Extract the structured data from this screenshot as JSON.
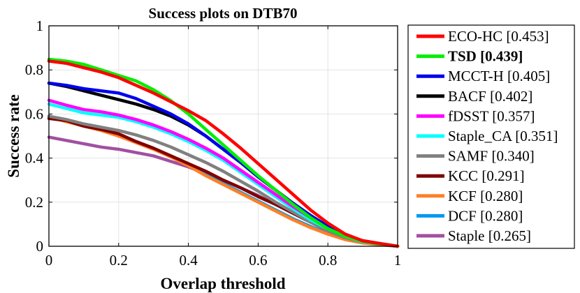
{
  "chart_data": {
    "type": "line",
    "title": "Success plots on DTB70",
    "xlabel": "Overlap threshold",
    "ylabel": "Success rate",
    "xlim": [
      0,
      1
    ],
    "ylim": [
      0,
      1
    ],
    "xticks": [
      0,
      0.2,
      0.4,
      0.6,
      0.8,
      1
    ],
    "yticks": [
      0,
      0.2,
      0.4,
      0.6,
      0.8,
      1
    ],
    "xtick_labels": [
      "0",
      "0.2",
      "0.4",
      "0.6",
      "0.8",
      "1"
    ],
    "ytick_labels": [
      "0",
      "0.2",
      "0.4",
      "0.6",
      "0.8",
      "1"
    ],
    "grid": true,
    "legend_position": "outside-right",
    "x": [
      0,
      0.05,
      0.1,
      0.15,
      0.2,
      0.25,
      0.3,
      0.35,
      0.4,
      0.45,
      0.5,
      0.55,
      0.6,
      0.65,
      0.7,
      0.75,
      0.8,
      0.85,
      0.9,
      0.95,
      1.0
    ],
    "series": [
      {
        "name": "ECO-HC [0.453]",
        "color": "#ff0000",
        "bold": false,
        "values": [
          0.84,
          0.83,
          0.81,
          0.79,
          0.765,
          0.73,
          0.695,
          0.655,
          0.615,
          0.57,
          0.51,
          0.445,
          0.375,
          0.305,
          0.235,
          0.165,
          0.105,
          0.055,
          0.025,
          0.012,
          0.0
        ]
      },
      {
        "name": "TSD [0.439]",
        "color": "#00ee00",
        "bold": true,
        "values": [
          0.848,
          0.84,
          0.825,
          0.8,
          0.775,
          0.75,
          0.71,
          0.66,
          0.6,
          0.53,
          0.46,
          0.39,
          0.32,
          0.255,
          0.19,
          0.13,
          0.08,
          0.045,
          0.022,
          0.01,
          0.0
        ]
      },
      {
        "name": "MCCT-H [0.405]",
        "color": "#0000ee",
        "bold": false,
        "values": [
          0.74,
          0.73,
          0.715,
          0.705,
          0.695,
          0.67,
          0.635,
          0.6,
          0.555,
          0.5,
          0.44,
          0.38,
          0.315,
          0.255,
          0.195,
          0.14,
          0.09,
          0.05,
          0.025,
          0.012,
          0.0
        ]
      },
      {
        "name": "BACF [0.402]",
        "color": "#000000",
        "bold": false,
        "values": [
          0.74,
          0.725,
          0.705,
          0.685,
          0.665,
          0.645,
          0.62,
          0.59,
          0.55,
          0.5,
          0.44,
          0.38,
          0.315,
          0.255,
          0.195,
          0.14,
          0.09,
          0.05,
          0.025,
          0.012,
          0.0
        ]
      },
      {
        "name": "fDSST [0.357]",
        "color": "#ff00ff",
        "bold": false,
        "values": [
          0.662,
          0.64,
          0.62,
          0.61,
          0.595,
          0.575,
          0.55,
          0.52,
          0.485,
          0.445,
          0.4,
          0.345,
          0.29,
          0.235,
          0.18,
          0.13,
          0.085,
          0.048,
          0.022,
          0.01,
          0.0
        ]
      },
      {
        "name": "Staple_CA [0.351]",
        "color": "#00ffff",
        "bold": false,
        "values": [
          0.645,
          0.625,
          0.605,
          0.595,
          0.585,
          0.565,
          0.54,
          0.51,
          0.475,
          0.435,
          0.39,
          0.335,
          0.28,
          0.225,
          0.17,
          0.12,
          0.08,
          0.045,
          0.02,
          0.01,
          0.0
        ]
      },
      {
        "name": "SAMF [0.340]",
        "color": "#808080",
        "bold": false,
        "values": [
          0.59,
          0.575,
          0.555,
          0.54,
          0.525,
          0.505,
          0.48,
          0.45,
          0.415,
          0.38,
          0.34,
          0.295,
          0.25,
          0.2,
          0.155,
          0.11,
          0.07,
          0.04,
          0.02,
          0.01,
          0.0
        ]
      },
      {
        "name": "KCC [0.291]",
        "color": "#800000",
        "bold": false,
        "values": [
          0.58,
          0.57,
          0.545,
          0.53,
          0.51,
          0.475,
          0.445,
          0.41,
          0.375,
          0.34,
          0.3,
          0.265,
          0.225,
          0.19,
          0.15,
          0.11,
          0.07,
          0.04,
          0.02,
          0.01,
          0.0
        ]
      },
      {
        "name": "KCF [0.280]",
        "color": "#ff7f27",
        "bold": false,
        "values": [
          0.588,
          0.565,
          0.545,
          0.525,
          0.5,
          0.47,
          0.44,
          0.405,
          0.365,
          0.32,
          0.28,
          0.24,
          0.2,
          0.16,
          0.12,
          0.085,
          0.055,
          0.03,
          0.015,
          0.007,
          0.0
        ]
      },
      {
        "name": "DCF [0.280]",
        "color": "#0099ee",
        "bold": false,
        "values": [
          0.59,
          0.567,
          0.547,
          0.527,
          0.503,
          0.473,
          0.443,
          0.408,
          0.368,
          0.325,
          0.285,
          0.245,
          0.205,
          0.165,
          0.125,
          0.09,
          0.058,
          0.032,
          0.016,
          0.008,
          0.0
        ]
      },
      {
        "name": "Staple [0.265]",
        "color": "#a050a0",
        "bold": false,
        "values": [
          0.495,
          0.48,
          0.465,
          0.45,
          0.44,
          0.425,
          0.41,
          0.385,
          0.36,
          0.33,
          0.3,
          0.265,
          0.23,
          0.19,
          0.15,
          0.11,
          0.07,
          0.04,
          0.02,
          0.01,
          0.0
        ]
      }
    ]
  }
}
